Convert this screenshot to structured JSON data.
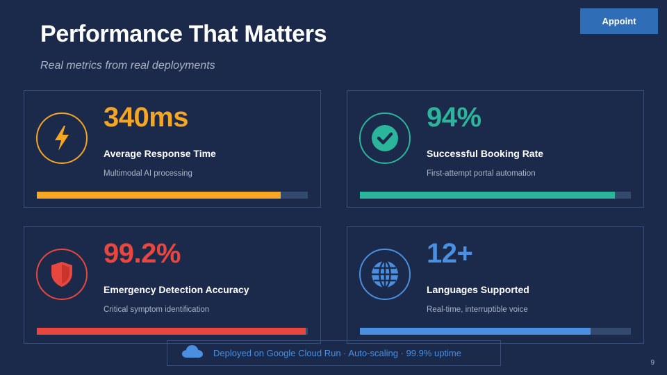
{
  "header": {
    "title": "Performance That Matters",
    "subtitle": "Real metrics from real deployments",
    "button_label": "Appoint"
  },
  "cards": [
    {
      "metric": "340ms",
      "label": "Average Response Time",
      "description": "Multimodal AI processing",
      "icon": "lightning-icon",
      "color": "#f5a623",
      "progress": 0.9
    },
    {
      "metric": "94%",
      "label": "Successful Booking Rate",
      "description": "First-attempt portal automation",
      "icon": "check-circle-icon",
      "color": "#2bb59a",
      "progress": 0.94
    },
    {
      "metric": "99.2%",
      "label": "Emergency Detection Accuracy",
      "description": "Critical symptom identification",
      "icon": "shield-icon",
      "color": "#e8473f",
      "progress": 0.992
    },
    {
      "metric": "12+",
      "label": "Languages Supported",
      "description": "Real-time, interruptible voice",
      "icon": "globe-icon",
      "color": "#4a8fe0",
      "progress": 0.85
    }
  ],
  "footer": {
    "text": "Deployed on Google Cloud Run  ·  Auto-scaling  ·  99.9% uptime",
    "icon": "cloud-icon"
  },
  "page_number": "9"
}
